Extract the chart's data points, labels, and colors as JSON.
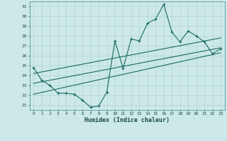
{
  "xlabel": "Humidex (Indice chaleur)",
  "bg_color": "#cce8e8",
  "line_color": "#1a6b60",
  "grid_color": "#aacfcf",
  "xlim": [
    -0.5,
    23.5
  ],
  "ylim": [
    20.5,
    31.5
  ],
  "xticks": [
    0,
    1,
    2,
    3,
    4,
    5,
    6,
    7,
    8,
    9,
    10,
    11,
    12,
    13,
    14,
    15,
    16,
    17,
    18,
    19,
    20,
    21,
    22,
    23
  ],
  "yticks": [
    21,
    22,
    23,
    24,
    25,
    26,
    27,
    28,
    29,
    30,
    31
  ],
  "series1_x": [
    0,
    1,
    2,
    3,
    4,
    5,
    6,
    7,
    8,
    9,
    10,
    11,
    12,
    13,
    14,
    15,
    16,
    17,
    18,
    19,
    20,
    21,
    22,
    23
  ],
  "series1_y": [
    24.8,
    23.5,
    23.0,
    22.2,
    22.2,
    22.1,
    21.5,
    20.8,
    20.9,
    22.3,
    27.5,
    24.7,
    27.7,
    27.5,
    29.3,
    29.7,
    31.2,
    28.4,
    27.4,
    28.5,
    28.0,
    27.4,
    26.2,
    26.7
  ],
  "line2_x": [
    0,
    23
  ],
  "line2_y": [
    23.2,
    26.8
  ],
  "line3_x": [
    0,
    23
  ],
  "line3_y": [
    24.2,
    27.8
  ],
  "line4_x": [
    0,
    23
  ],
  "line4_y": [
    22.1,
    26.3
  ]
}
